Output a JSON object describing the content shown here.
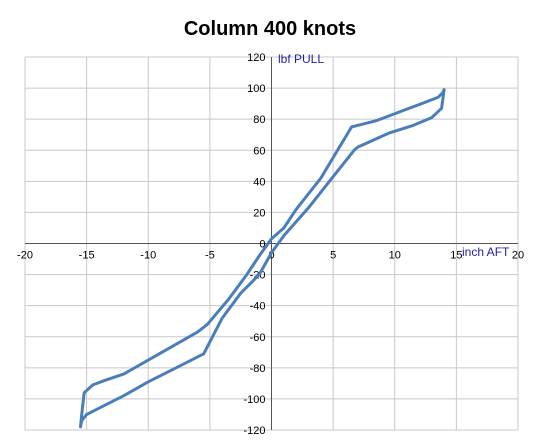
{
  "chart_data": {
    "type": "line",
    "title": "Column 400 knots",
    "xlabel": "inch AFT",
    "ylabel": "lbf PULL",
    "xlim": [
      -20,
      20
    ],
    "ylim": [
      -120,
      120
    ],
    "x_ticks": [
      -20,
      -15,
      -10,
      -5,
      0,
      5,
      10,
      15,
      20
    ],
    "y_ticks": [
      -120,
      -100,
      -80,
      -60,
      -40,
      -20,
      0,
      20,
      40,
      60,
      80,
      100,
      120
    ],
    "grid": true,
    "legend": "none",
    "series_color": "#4A7EBB",
    "label_color": "#1F1FA8",
    "series": [
      {
        "x": [
          -15.5,
          -15.4,
          -15.2,
          -14.5,
          -13.5,
          -12.0,
          -10.0,
          -8.0,
          -6.0,
          -5.2,
          -3.5,
          -2.0,
          -1.0,
          0.0,
          1.0,
          2.0,
          4.0,
          6.5,
          8.5,
          10.5,
          12.5,
          13.5,
          13.9,
          14.0,
          13.8,
          13.0,
          11.5,
          9.5,
          7.0,
          6.7,
          5.0,
          3.0,
          1.0,
          0.0,
          -1.0,
          -2.5,
          -4.0,
          -5.5,
          -7.5,
          -10.0,
          -12.0,
          -14.0,
          -15.0,
          -15.4,
          -15.5
        ],
        "y": [
          -118,
          -110,
          -96,
          -91,
          -88,
          -84,
          -75,
          -66,
          -57,
          -52,
          -36,
          -20,
          -8,
          3,
          10,
          22,
          42,
          75,
          79,
          85,
          91,
          94,
          97,
          99,
          87,
          81,
          76,
          71,
          62,
          60,
          43,
          23,
          5,
          -6,
          -20,
          -32,
          -48,
          -71,
          -79,
          -89,
          -98,
          -106,
          -110,
          -114,
          -118
        ]
      }
    ]
  }
}
